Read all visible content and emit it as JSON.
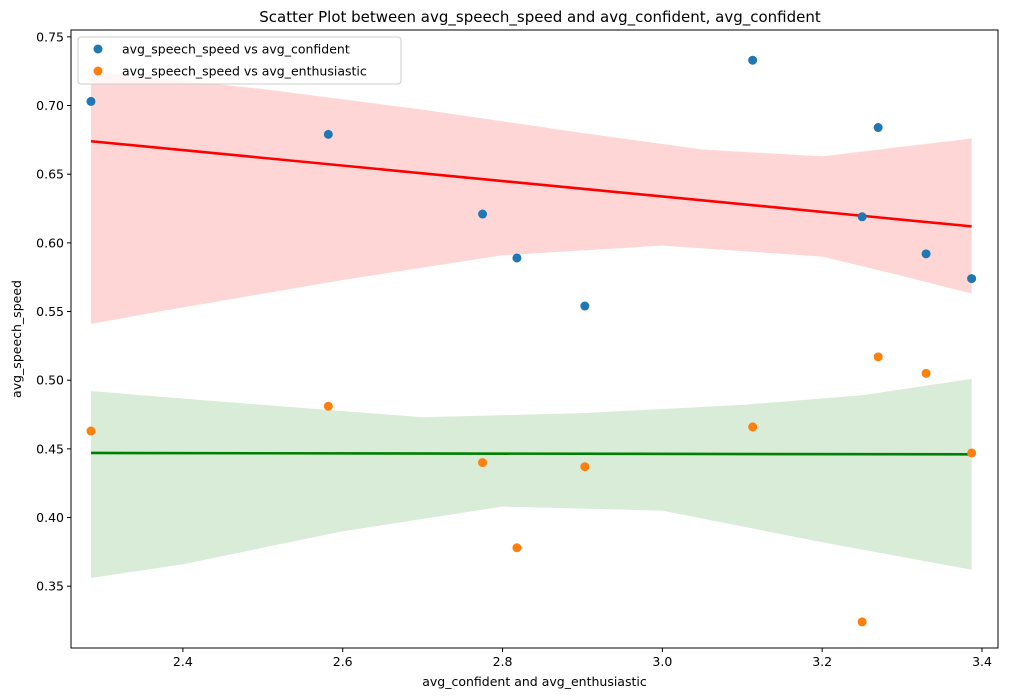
{
  "chart_data": {
    "type": "scatter",
    "title": "Scatter Plot between avg_speech_speed and avg_confident, avg_confident",
    "xlabel": "avg_confident and avg_enthusiastic",
    "ylabel": "avg_speech_speed",
    "xlim": [
      2.26,
      3.42
    ],
    "ylim": [
      0.305,
      0.755
    ],
    "x_ticks": [
      2.4,
      2.6,
      2.8,
      3.0,
      3.2,
      3.4
    ],
    "x_tick_labels": [
      "2.4",
      "2.6",
      "2.8",
      "3.0",
      "3.2",
      "3.4"
    ],
    "y_ticks": [
      0.35,
      0.4,
      0.45,
      0.5,
      0.55,
      0.6,
      0.65,
      0.7,
      0.75
    ],
    "y_tick_labels": [
      "0.35",
      "0.40",
      "0.45",
      "0.50",
      "0.55",
      "0.60",
      "0.65",
      "0.70",
      "0.75"
    ],
    "grid": false,
    "legend_position": "top-left",
    "series": [
      {
        "name": "avg_speech_speed vs avg_confident",
        "color": "#1f77b4",
        "points": [
          {
            "x": 2.285,
            "y": 0.703
          },
          {
            "x": 2.582,
            "y": 0.679
          },
          {
            "x": 2.775,
            "y": 0.621
          },
          {
            "x": 2.818,
            "y": 0.589
          },
          {
            "x": 2.903,
            "y": 0.554
          },
          {
            "x": 3.113,
            "y": 0.733
          },
          {
            "x": 3.25,
            "y": 0.619
          },
          {
            "x": 3.27,
            "y": 0.684
          },
          {
            "x": 3.33,
            "y": 0.592
          },
          {
            "x": 3.387,
            "y": 0.574
          }
        ],
        "fit": {
          "color": "#ff0000",
          "band_color": "#ffd6d6",
          "line": [
            [
              2.285,
              0.674
            ],
            [
              3.387,
              0.612
            ]
          ],
          "band_upper": [
            [
              2.285,
              0.725
            ],
            [
              2.5,
              0.712
            ],
            [
              2.7,
              0.697
            ],
            [
              2.9,
              0.68
            ],
            [
              3.05,
              0.668
            ],
            [
              3.2,
              0.663
            ],
            [
              3.3,
              0.67
            ],
            [
              3.387,
              0.676
            ]
          ],
          "band_lower": [
            [
              2.285,
              0.541
            ],
            [
              2.4,
              0.553
            ],
            [
              2.6,
              0.573
            ],
            [
              2.8,
              0.591
            ],
            [
              3.0,
              0.598
            ],
            [
              3.2,
              0.59
            ],
            [
              3.3,
              0.576
            ],
            [
              3.387,
              0.563
            ]
          ]
        }
      },
      {
        "name": "avg_speech_speed vs avg_enthusiastic",
        "color": "#ff7f0e",
        "points": [
          {
            "x": 2.285,
            "y": 0.463
          },
          {
            "x": 2.582,
            "y": 0.481
          },
          {
            "x": 2.775,
            "y": 0.44
          },
          {
            "x": 2.818,
            "y": 0.378
          },
          {
            "x": 2.903,
            "y": 0.437
          },
          {
            "x": 3.113,
            "y": 0.466
          },
          {
            "x": 3.25,
            "y": 0.324
          },
          {
            "x": 3.27,
            "y": 0.517
          },
          {
            "x": 3.33,
            "y": 0.505
          },
          {
            "x": 3.387,
            "y": 0.447
          }
        ],
        "fit": {
          "color": "#008000",
          "band_color": "#d8ecd8",
          "line": [
            [
              2.285,
              0.447
            ],
            [
              3.387,
              0.446
            ]
          ],
          "band_upper": [
            [
              2.285,
              0.492
            ],
            [
              2.5,
              0.482
            ],
            [
              2.7,
              0.473
            ],
            [
              2.9,
              0.476
            ],
            [
              3.1,
              0.482
            ],
            [
              3.25,
              0.489
            ],
            [
              3.387,
              0.501
            ]
          ],
          "band_lower": [
            [
              2.285,
              0.356
            ],
            [
              2.4,
              0.366
            ],
            [
              2.6,
              0.39
            ],
            [
              2.8,
              0.408
            ],
            [
              3.0,
              0.405
            ],
            [
              3.2,
              0.382
            ],
            [
              3.387,
              0.362
            ]
          ]
        }
      }
    ]
  }
}
